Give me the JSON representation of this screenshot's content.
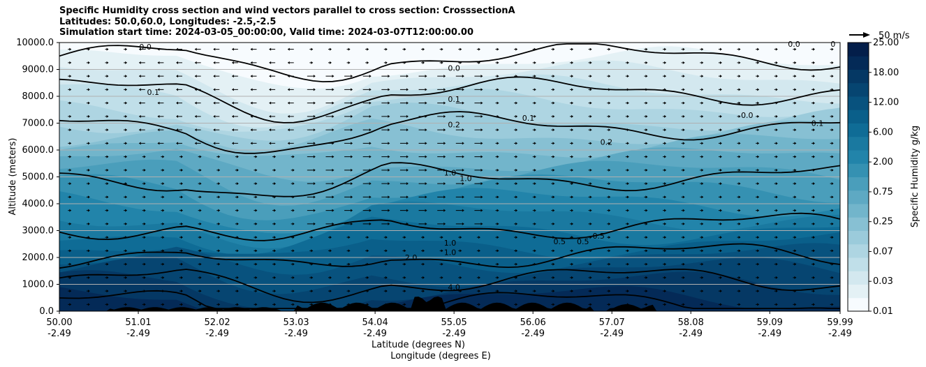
{
  "chart_data": {
    "type": "heatmap",
    "title_lines": [
      "Specific Humidity cross section and wind vectors parallel to cross section: CrosssectionA",
      "Latitudes: 50.0,60.0, Longitudes: -2.5,-2.5",
      "Simulation start time: 2024-03-05_00:00:00, Valid time: 2024-03-07T12:00:00.00"
    ],
    "ylabel": "Altitude (meters)",
    "xlabel_line1": "Latitude (degrees N)",
    "xlabel_line2": "Longitude (degrees E)",
    "ylim": [
      0,
      10000
    ],
    "xlim": [
      50.0,
      59.99
    ],
    "y_ticks": [
      "0.0",
      "1000.0",
      "2000.0",
      "3000.0",
      "4000.0",
      "5000.0",
      "6000.0",
      "7000.0",
      "8000.0",
      "9000.0",
      "10000.0"
    ],
    "x_ticks": [
      {
        "lat": "50.00",
        "lon": "-2.49"
      },
      {
        "lat": "51.01",
        "lon": "-2.49"
      },
      {
        "lat": "52.02",
        "lon": "-2.49"
      },
      {
        "lat": "53.03",
        "lon": "-2.49"
      },
      {
        "lat": "54.04",
        "lon": "-2.49"
      },
      {
        "lat": "55.05",
        "lon": "-2.49"
      },
      {
        "lat": "56.06",
        "lon": "-2.49"
      },
      {
        "lat": "57.07",
        "lon": "-2.49"
      },
      {
        "lat": "58.08",
        "lon": "-2.49"
      },
      {
        "lat": "59.09",
        "lon": "-2.49"
      },
      {
        "lat": "59.99",
        "lon": "-2.49"
      }
    ],
    "colorbar": {
      "label": "Specific Humidity g/kg",
      "ticks": [
        "0.01",
        "0.03",
        "0.07",
        "0.25",
        "0.75",
        "2.00",
        "6.00",
        "12.00",
        "18.00",
        "25.00"
      ]
    },
    "quiver_key": "50 m/s",
    "contour_labels": [
      {
        "text": "0.0",
        "lat": 55.05,
        "alt": 9050
      },
      {
        "text": "0.1",
        "lat": 55.05,
        "alt": 7900
      },
      {
        "text": "0.2",
        "lat": 55.05,
        "alt": 6950
      },
      {
        "text": "1.0",
        "lat": 55.0,
        "alt": 5150
      },
      {
        "text": "1.0",
        "lat": 55.2,
        "alt": 4950
      },
      {
        "text": "2.0",
        "lat": 54.5,
        "alt": 2000
      },
      {
        "text": "4.0",
        "lat": 55.05,
        "alt": 900
      },
      {
        "text": "0.1",
        "lat": 51.2,
        "alt": 8150
      },
      {
        "text": "0.0",
        "lat": 51.1,
        "alt": 9850
      },
      {
        "text": "0.1",
        "lat": 56.0,
        "alt": 7200
      },
      {
        "text": "0.2",
        "lat": 57.0,
        "alt": 6300
      },
      {
        "text": "0.5",
        "lat": 56.4,
        "alt": 2600
      },
      {
        "text": "0.5",
        "lat": 56.7,
        "alt": 2600
      },
      {
        "text": "0.5",
        "lat": 56.9,
        "alt": 2800
      },
      {
        "text": "0.0",
        "lat": 58.8,
        "alt": 7300
      },
      {
        "text": "0.1",
        "lat": 59.7,
        "alt": 7000
      },
      {
        "text": "0.0",
        "lat": 59.4,
        "alt": 9950
      },
      {
        "text": "1.0",
        "lat": 55.0,
        "alt": 2550
      },
      {
        "text": "1.0",
        "lat": 55.0,
        "alt": 2200
      },
      {
        "text": "0",
        "lat": 59.9,
        "alt": 9950
      }
    ],
    "colors": {
      "levels": [
        "#f7fbfe",
        "#e4f1f5",
        "#d3e8ef",
        "#c0dfe9",
        "#aed5e2",
        "#9bcbdb",
        "#87c0d3",
        "#72b5cb",
        "#5ea9c3",
        "#4a9ebb",
        "#3591b2",
        "#2284aa",
        "#1a79a0",
        "#0f6c96",
        "#0a5f8a",
        "#08527e",
        "#064571",
        "#053864",
        "#042a57",
        "#031e4a"
      ],
      "terrain": "#000000",
      "gridline": "#b0b0b0"
    }
  }
}
